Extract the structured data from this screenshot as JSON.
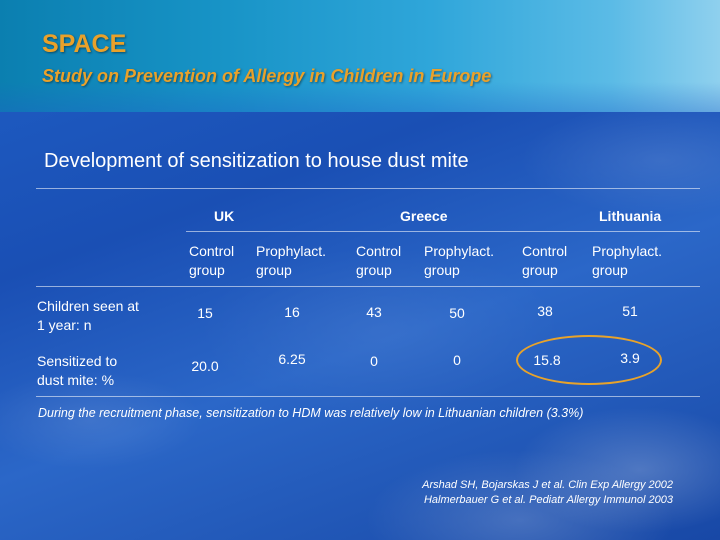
{
  "header": {
    "title": "SPACE",
    "subtitle": "Study on Prevention of Allergy in Children in Europe"
  },
  "section_heading": "Development of sensitization to house dust mite",
  "table": {
    "countries": [
      "UK",
      "Greece",
      "Lithuania"
    ],
    "group_headers": [
      [
        "Control",
        "group"
      ],
      [
        "Prophylact.",
        "group"
      ],
      [
        "Control",
        "group"
      ],
      [
        "Prophylact.",
        "group"
      ],
      [
        "Control",
        "group"
      ],
      [
        "Prophylact.",
        "group"
      ]
    ],
    "rows": [
      {
        "label": [
          "Children seen at",
          "1 year: n"
        ],
        "values": [
          "15",
          "16",
          "43",
          "50",
          "38",
          "51"
        ]
      },
      {
        "label": [
          "Sensitized to",
          "dust mite: %"
        ],
        "values": [
          "20.0",
          "6.25",
          "0",
          "0",
          "15.8",
          "3.9"
        ]
      }
    ],
    "highlight_color": "#e8a32a"
  },
  "note": "During the recruitment phase, sensitization to HDM was relatively low in Lithuanian children (3.3%)",
  "references": [
    "Arshad SH, Bojarskas J et al. Clin Exp Allergy 2002",
    "Halmerbauer G et al. Pediatr Allergy Immunol 2003"
  ],
  "colors": {
    "title": "#e9a12a",
    "background": "#1f5fc6",
    "header_band": "#1793c6"
  }
}
